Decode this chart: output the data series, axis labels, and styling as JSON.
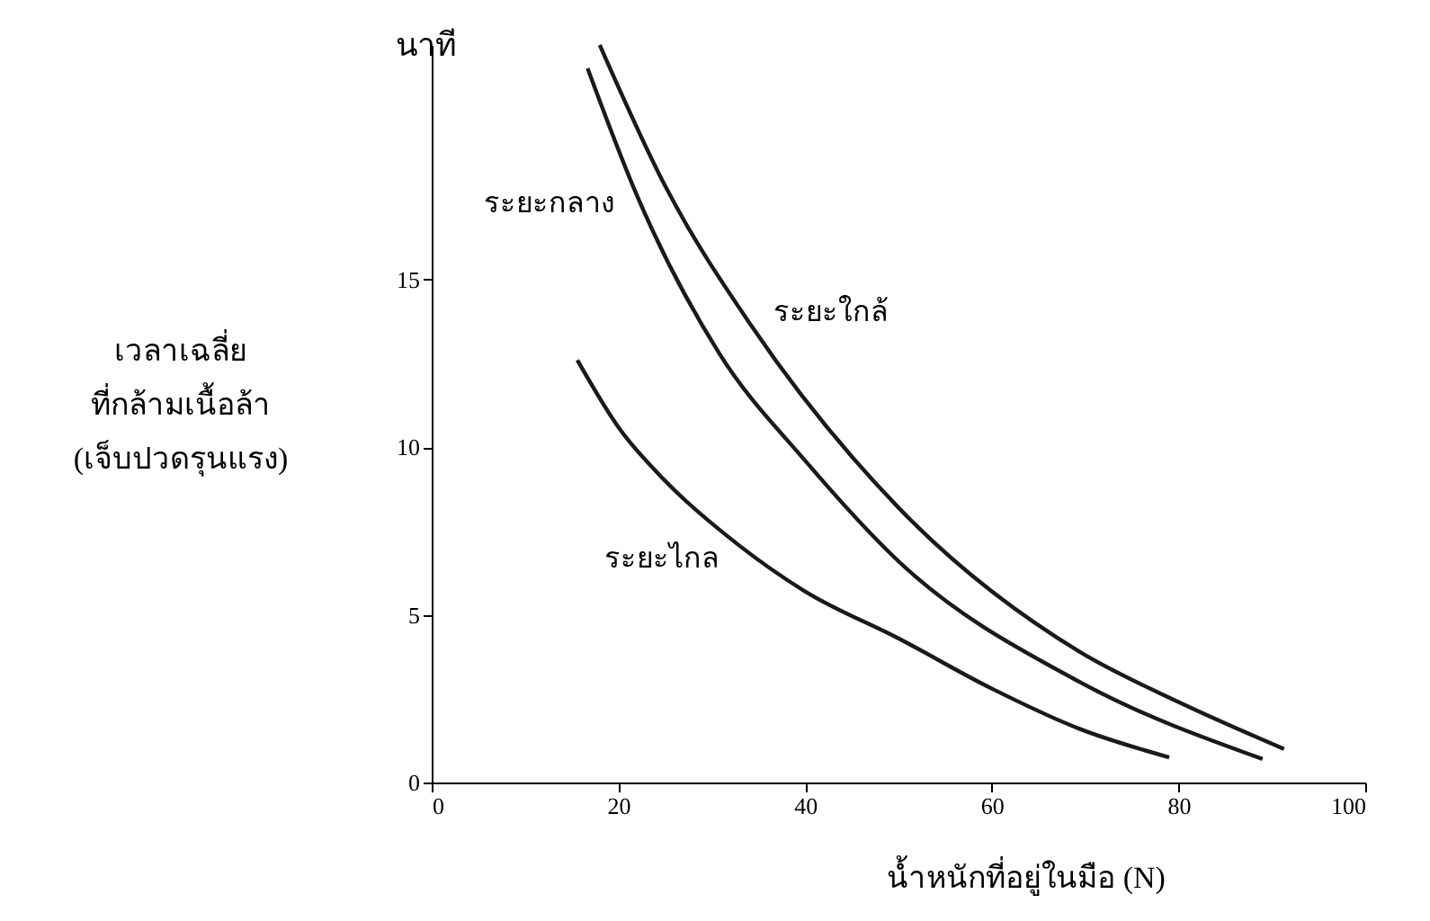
{
  "chart_data": {
    "type": "line",
    "xlabel": "น้ำหนักที่อยู่ในมือ (N)",
    "ylabel": "เวลาเฉลี่ย\nที่กล้ามเนื้อล้า\n(เจ็บปวดรุนแรง)",
    "annotations": [
      "นาที"
    ],
    "xlim": [
      0,
      100
    ],
    "xticks": [
      0,
      20,
      40,
      60,
      80,
      100
    ],
    "ylim": [
      0,
      22
    ],
    "yticks": [
      0,
      5,
      10,
      15
    ],
    "grid": false,
    "marker": "none",
    "line_style": "solid",
    "series": [
      {
        "name": "ระยะใกล้",
        "color": "#1a1a1a",
        "x": [
          18,
          25,
          34.3,
          50,
          69.4,
          80,
          91.3
        ],
        "values": [
          22.0,
          17.8,
          13.6,
          8.2,
          3.9,
          2.4,
          1.0
        ]
      },
      {
        "name": "ระยะกลาง",
        "color": "#1a1a1a",
        "x": [
          16.7,
          22,
          30.8,
          40,
          50,
          69.4,
          89
        ],
        "values": [
          21.3,
          17.5,
          12.8,
          9.6,
          6.6,
          3.0,
          0.7
        ]
      },
      {
        "name": "ระยะไกล",
        "color": "#1a1a1a",
        "x": [
          15.6,
          20,
          25,
          32.8,
          40,
          50,
          60,
          69.4,
          79
        ],
        "values": [
          12.6,
          10.6,
          9.0,
          7.1,
          5.7,
          4.3,
          2.8,
          1.6,
          0.75
        ]
      }
    ]
  }
}
